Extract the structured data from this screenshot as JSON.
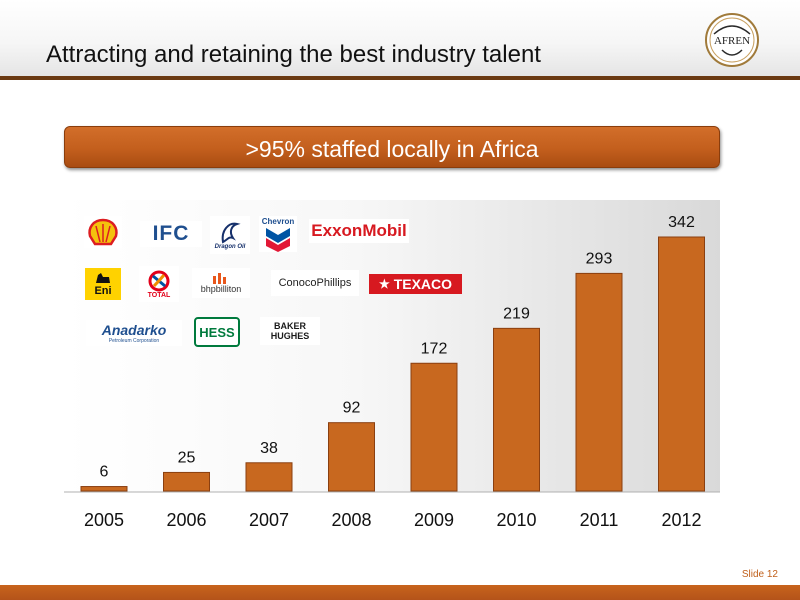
{
  "title": "Attracting and retaining the best industry talent",
  "logo_text": "AFREN",
  "banner": ">95% staffed locally in Africa",
  "slide_label": "Slide 12",
  "brands": {
    "shell": "",
    "ifc": "IFC",
    "dragon_oil": "Dragon Oil",
    "chevron": "Chevron",
    "exxonmobil": "ExxonMobil",
    "eni": "Eni",
    "total": "TOTAL",
    "bhpbilliton": "bhpbilliton",
    "conocophillips": "ConocoPhillips",
    "texaco": "TEXACO",
    "anadarko": "Anadarko",
    "anadarko_sub": "Petroleum Corporation",
    "hess": "HESS",
    "baker_hughes_1": "BAKER",
    "baker_hughes_2": "HUGHES"
  },
  "colors": {
    "bar": "#c8681f",
    "bar_edge": "#8a3f10",
    "accent": "#6b3a12",
    "banner": "#c35f1d"
  },
  "chart_data": {
    "type": "bar",
    "categories": [
      "2005",
      "2006",
      "2007",
      "2008",
      "2009",
      "2010",
      "2011",
      "2012"
    ],
    "values": [
      6,
      25,
      38,
      92,
      172,
      219,
      293,
      342
    ],
    "ylim": [
      0,
      342
    ],
    "grid": false,
    "data_labels": true
  }
}
